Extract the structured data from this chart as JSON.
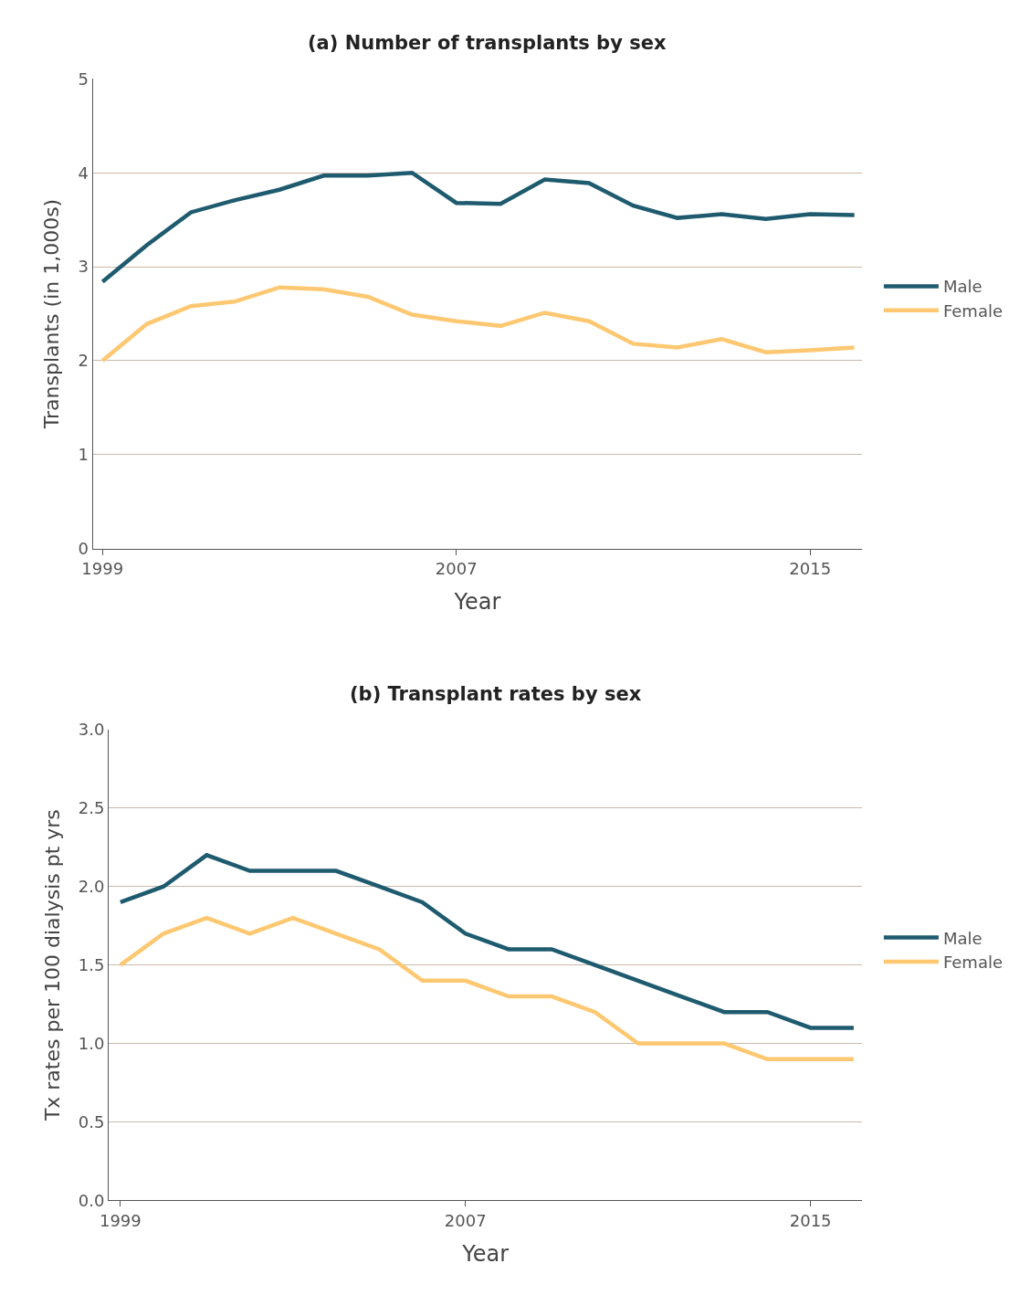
{
  "chart_data": [
    {
      "type": "line",
      "title": "(a) Number of transplants by sex",
      "xlabel": "Year",
      "ylabel": "Transplants (in 1,000s)",
      "x": [
        1999,
        2000,
        2001,
        2002,
        2003,
        2004,
        2005,
        2006,
        2007,
        2008,
        2009,
        2010,
        2011,
        2012,
        2013,
        2014,
        2015,
        2016
      ],
      "series": [
        {
          "name": "Male",
          "color": "#1f5b6f",
          "values": [
            2.84,
            3.23,
            3.58,
            3.71,
            3.82,
            3.97,
            3.97,
            4.0,
            3.68,
            3.67,
            3.93,
            3.89,
            3.65,
            3.52,
            3.56,
            3.51,
            3.56,
            3.55
          ]
        },
        {
          "name": "Female",
          "color": "#fdc871",
          "values": [
            2.0,
            2.39,
            2.58,
            2.63,
            2.78,
            2.76,
            2.68,
            2.49,
            2.42,
            2.37,
            2.51,
            2.42,
            2.18,
            2.14,
            2.23,
            2.09,
            2.11,
            2.14
          ]
        }
      ],
      "xlim": [
        1998.78,
        2016.18
      ],
      "xticks": [
        1999,
        2007,
        2015
      ],
      "ylim": [
        0,
        5
      ],
      "yticks": [
        0,
        1,
        2,
        3,
        4,
        5
      ],
      "grid": "y",
      "legend": "right",
      "marker": "none",
      "line_style": "solid"
    },
    {
      "type": "line",
      "title": "(b) Transplant rates by sex",
      "xlabel": "Year",
      "ylabel": "Tx rates per 100 dialysis pt yrs",
      "x": [
        1999,
        2000,
        2001,
        2002,
        2003,
        2004,
        2005,
        2006,
        2007,
        2008,
        2009,
        2010,
        2011,
        2012,
        2013,
        2014,
        2015,
        2016
      ],
      "series": [
        {
          "name": "Male",
          "color": "#1f5b6f",
          "values": [
            1.9,
            2.0,
            2.2,
            2.1,
            2.1,
            2.1,
            2.0,
            1.9,
            1.7,
            1.6,
            1.6,
            1.5,
            1.4,
            1.3,
            1.2,
            1.2,
            1.1,
            1.1
          ]
        },
        {
          "name": "Female",
          "color": "#fdc871",
          "values": [
            1.5,
            1.7,
            1.8,
            1.7,
            1.8,
            1.7,
            1.6,
            1.4,
            1.4,
            1.3,
            1.3,
            1.2,
            1.0,
            1.0,
            1.0,
            0.9,
            0.9,
            0.9
          ]
        }
      ],
      "xlim": [
        1998.73,
        2016.2
      ],
      "xticks": [
        1999,
        2007,
        2015
      ],
      "ylim": [
        0,
        3
      ],
      "yticks": [
        {
          "value": 0,
          "label": "0.0"
        },
        {
          "value": 0.5,
          "label": "0.5"
        },
        {
          "value": 1,
          "label": "1.0"
        },
        {
          "value": 1.5,
          "label": "1.5"
        },
        {
          "value": 2,
          "label": "2.0"
        },
        {
          "value": 2.5,
          "label": "2.5"
        },
        {
          "value": 3,
          "label": "3.0"
        }
      ],
      "grid": "y",
      "legend": "right",
      "marker": "none",
      "line_style": "solid"
    }
  ]
}
